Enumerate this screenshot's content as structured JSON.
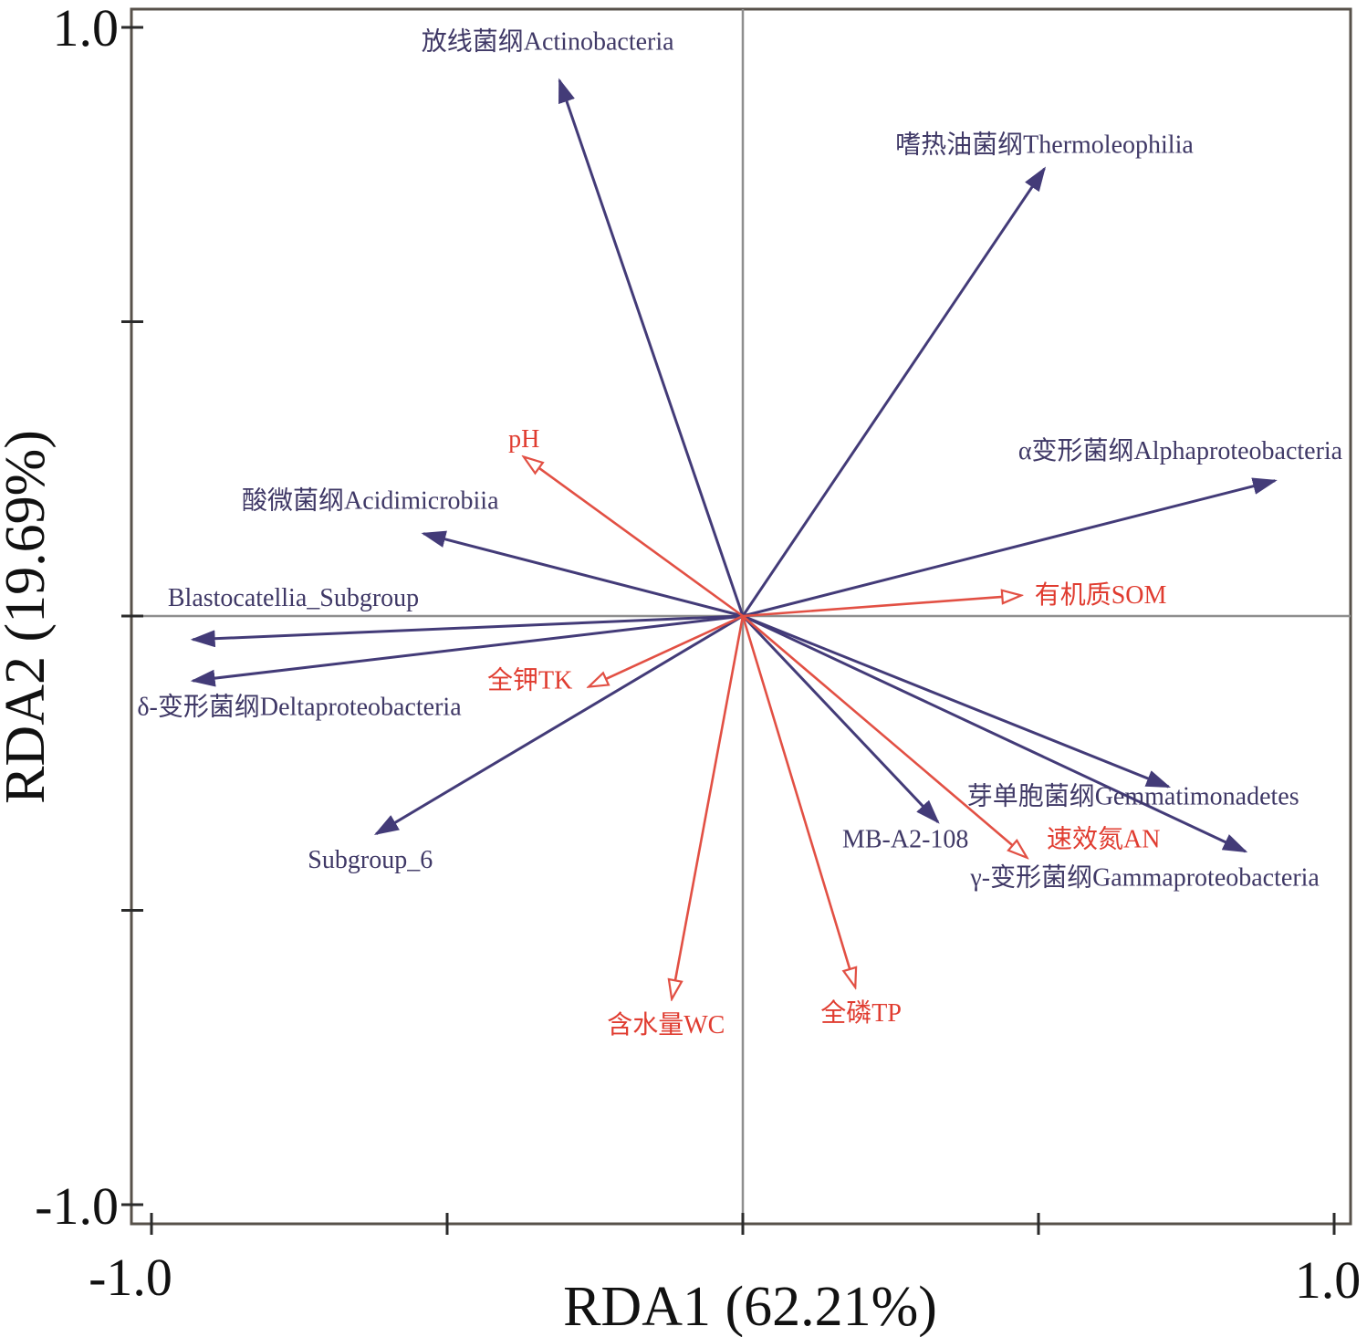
{
  "axes": {
    "x": {
      "title": "RDA1 (62.21%)",
      "min_tick_label": "-1.0",
      "max_tick_label": "1.0"
    },
    "y": {
      "title": "RDA2 (19.69%)",
      "max_tick_label": "1.0",
      "min_tick_label": "-1.0"
    }
  },
  "chart_data": {
    "type": "scatter",
    "subtype": "RDA ordination biplot: arrows radiating from origin (taxa vectors in dark indigo with solid heads, environmental-factor vectors in red with open heads)",
    "title": "",
    "xlabel": "RDA1 (62.21%)",
    "ylabel": "RDA2 (19.69%)",
    "xlim": [
      -1.0,
      1.0
    ],
    "ylim": [
      -1.0,
      1.0
    ],
    "xticks": [
      -1.0,
      -0.5,
      0,
      0.5,
      1.0
    ],
    "yticks": [
      -1.0,
      -0.5,
      0,
      0.5,
      1.0
    ],
    "visible_x_tick_labels": [
      "-1.0",
      "1.0"
    ],
    "visible_y_tick_labels": [
      "1.0",
      "-1.0"
    ],
    "grid": false,
    "legend": "none",
    "colors": {
      "taxa_arrow": "#433b78",
      "taxa_label": "#3f3866",
      "env_arrow": "#e25044",
      "env_label": "#e03c30",
      "axis_box": "#57514a",
      "center_lines": "#8e8e8e",
      "tick_mark": "#2b2b2b"
    },
    "taxa_vectors": [
      {
        "id": "actinobacteria",
        "label": "放线菌纲Actinobacteria",
        "x": -0.31,
        "y": 0.91,
        "label_x": -0.33,
        "label_y": 0.975
      },
      {
        "id": "thermoleophilia",
        "label": "嗜热油菌纲Thermoleophilia",
        "x": 0.51,
        "y": 0.76,
        "label_x": 0.51,
        "label_y": 0.8
      },
      {
        "id": "alphaproteobacteria",
        "label": "α变形菌纲Alphaproteobacteria",
        "x": 0.9,
        "y": 0.23,
        "label_x": 0.74,
        "label_y": 0.28
      },
      {
        "id": "acidimicrobiia",
        "label": "酸微菌纲Acidimicrobiia",
        "x": -0.54,
        "y": 0.14,
        "label_x": -0.63,
        "label_y": 0.195
      },
      {
        "id": "blastocatellia",
        "label": "Blastocatellia_Subgroup",
        "x": -0.93,
        "y": -0.04,
        "label_x": -0.76,
        "label_y": 0.03
      },
      {
        "id": "deltaproteobacteria",
        "label": "δ-变形菌纲Deltaproteobacteria",
        "x": -0.93,
        "y": -0.11,
        "label_x": -0.75,
        "label_y": -0.155
      },
      {
        "id": "subgroup-6",
        "label": "Subgroup_6",
        "x": -0.62,
        "y": -0.37,
        "label_x": -0.63,
        "label_y": -0.415
      },
      {
        "id": "mb-a2-108",
        "label": "MB-A2-108",
        "x": 0.33,
        "y": -0.35,
        "label_x": 0.275,
        "label_y": -0.38
      },
      {
        "id": "gemmatimonadetes",
        "label": "芽单胞菌纲Gemmatimonadetes",
        "x": 0.72,
        "y": -0.29,
        "label_x": 0.66,
        "label_y": -0.307
      },
      {
        "id": "gammaproteobacteria",
        "label": "γ-变形菌纲Gammaproteobacteria",
        "x": 0.85,
        "y": -0.4,
        "label_x": 0.68,
        "label_y": -0.445
      }
    ],
    "env_vectors": [
      {
        "id": "ph",
        "label": "pH",
        "x": -0.37,
        "y": 0.27,
        "label_x": -0.37,
        "label_y": 0.3
      },
      {
        "id": "som",
        "label": "有机质SOM",
        "x": 0.47,
        "y": 0.035,
        "label_x": 0.605,
        "label_y": 0.035
      },
      {
        "id": "tk",
        "label": "全钾TK",
        "x": -0.26,
        "y": -0.12,
        "label_x": -0.36,
        "label_y": -0.11
      },
      {
        "id": "an",
        "label": "速效氮AN",
        "x": 0.48,
        "y": -0.41,
        "label_x": 0.61,
        "label_y": -0.38
      },
      {
        "id": "wc",
        "label": "含水量WC",
        "x": -0.12,
        "y": -0.65,
        "label_x": -0.13,
        "label_y": -0.695
      },
      {
        "id": "tp",
        "label": "全磷TP",
        "x": 0.19,
        "y": -0.63,
        "label_x": 0.2,
        "label_y": -0.675
      }
    ]
  }
}
